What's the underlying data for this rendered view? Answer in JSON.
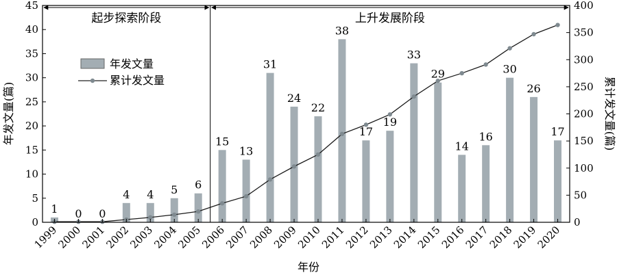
{
  "chart_data": {
    "type": "bar",
    "categories": [
      "1999",
      "2000",
      "2001",
      "2002",
      "2003",
      "2004",
      "2005",
      "2006",
      "2007",
      "2008",
      "2009",
      "2010",
      "2011",
      "2012",
      "2013",
      "2014",
      "2015",
      "2016",
      "2017",
      "2018",
      "2019",
      "2020"
    ],
    "series": [
      {
        "name": "年发文量",
        "type": "bar",
        "axis": "left",
        "color": "#a3adb3",
        "values": [
          1,
          0,
          0,
          4,
          4,
          5,
          6,
          15,
          13,
          31,
          24,
          22,
          38,
          17,
          19,
          33,
          29,
          14,
          16,
          30,
          26,
          17
        ]
      },
      {
        "name": "累计发文量",
        "type": "line",
        "axis": "right",
        "color": "#7f8a90",
        "values": [
          1,
          1,
          1,
          5,
          9,
          14,
          20,
          35,
          48,
          79,
          103,
          125,
          163,
          180,
          199,
          232,
          261,
          275,
          291,
          321,
          347,
          364
        ]
      }
    ],
    "xlabel": "年份",
    "ylabel_left": "年发文量(篇)",
    "ylabel_right": "累计发文量(篇)",
    "ylim_left": [
      0,
      45
    ],
    "ylim_right": [
      0,
      400
    ],
    "yticks_left": [
      "0",
      "5",
      "10",
      "15",
      "20",
      "25",
      "30",
      "35",
      "40",
      "45"
    ],
    "yticks_right": [
      "0",
      "50",
      "100",
      "150",
      "200",
      "250",
      "300",
      "350",
      "400"
    ],
    "stages": [
      {
        "label": "起步探索阶段",
        "from": "1999",
        "to": "2005"
      },
      {
        "label": "上升发展阶段",
        "from": "2006",
        "to": "2020"
      }
    ],
    "stage_divider_between": [
      "2005",
      "2006"
    ],
    "legend": {
      "position": "upper-left"
    },
    "grid": false
  }
}
